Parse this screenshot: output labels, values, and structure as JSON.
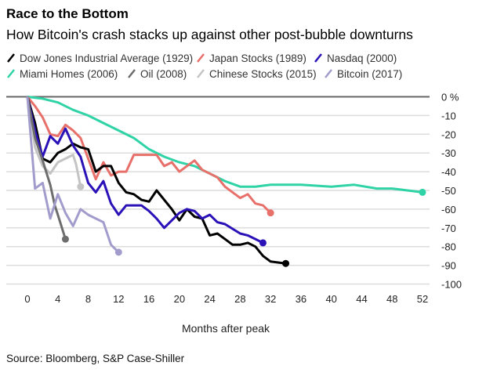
{
  "chart_data": {
    "type": "line",
    "title": "Race to the Bottom",
    "subtitle": "How Bitcoin's crash stacks up against other post-bubble downturns",
    "xlabel": "Months after peak",
    "ylabel": "",
    "source": "Source: Bloomberg, S&P Case-Shiller",
    "xlim": [
      0,
      52
    ],
    "ylim": [
      -100,
      0
    ],
    "x_ticks": [
      "0",
      "4",
      "8",
      "12",
      "16",
      "20",
      "24",
      "28",
      "32",
      "36",
      "40",
      "44",
      "48",
      "52"
    ],
    "y_ticks": [
      "0 %",
      "-10",
      "-20",
      "-30",
      "-40",
      "-50",
      "-60",
      "-70",
      "-80",
      "-90",
      "-100"
    ],
    "grid": true,
    "legend_position": "top",
    "series": [
      {
        "name": "Dow Jones Industrial Average (1929)",
        "color": "#000000",
        "points": [
          [
            0,
            0
          ],
          [
            1,
            -14
          ],
          [
            2,
            -33
          ],
          [
            3,
            -35
          ],
          [
            4,
            -30
          ],
          [
            5,
            -28
          ],
          [
            6,
            -25
          ],
          [
            7,
            -27
          ],
          [
            8,
            -28
          ],
          [
            9,
            -40
          ],
          [
            10,
            -37
          ],
          [
            11,
            -37
          ],
          [
            12,
            -46
          ],
          [
            13,
            -51
          ],
          [
            14,
            -52
          ],
          [
            15,
            -55
          ],
          [
            16,
            -56
          ],
          [
            17,
            -50
          ],
          [
            18,
            -55
          ],
          [
            19,
            -60
          ],
          [
            20,
            -66
          ],
          [
            21,
            -60
          ],
          [
            22,
            -64
          ],
          [
            23,
            -65
          ],
          [
            24,
            -74
          ],
          [
            25,
            -73
          ],
          [
            26,
            -76
          ],
          [
            27,
            -79
          ],
          [
            28,
            -79
          ],
          [
            29,
            -78
          ],
          [
            30,
            -80
          ],
          [
            31,
            -85
          ],
          [
            32,
            -88
          ],
          [
            34,
            -89
          ]
        ]
      },
      {
        "name": "Japan Stocks (1989)",
        "color": "#e8706a",
        "points": [
          [
            0,
            0
          ],
          [
            1,
            -5
          ],
          [
            2,
            -11
          ],
          [
            3,
            -20
          ],
          [
            4,
            -21
          ],
          [
            5,
            -15
          ],
          [
            6,
            -18
          ],
          [
            7,
            -22
          ],
          [
            8,
            -33
          ],
          [
            9,
            -44
          ],
          [
            10,
            -35
          ],
          [
            11,
            -42
          ],
          [
            12,
            -40
          ],
          [
            13,
            -40
          ],
          [
            14,
            -31
          ],
          [
            16,
            -31
          ],
          [
            17,
            -31
          ],
          [
            18,
            -37
          ],
          [
            19,
            -35
          ],
          [
            20,
            -40
          ],
          [
            22,
            -34
          ],
          [
            23,
            -39
          ],
          [
            25,
            -43
          ],
          [
            26,
            -48
          ],
          [
            27,
            -51
          ],
          [
            28,
            -54
          ],
          [
            29,
            -52
          ],
          [
            30,
            -57
          ],
          [
            31,
            -58
          ],
          [
            32,
            -62
          ]
        ]
      },
      {
        "name": "Nasdaq (2000)",
        "color": "#2a11b8",
        "points": [
          [
            0,
            0
          ],
          [
            1,
            -18
          ],
          [
            2,
            -32
          ],
          [
            3,
            -21
          ],
          [
            4,
            -25
          ],
          [
            5,
            -17
          ],
          [
            6,
            -26
          ],
          [
            7,
            -32
          ],
          [
            8,
            -46
          ],
          [
            9,
            -51
          ],
          [
            10,
            -45
          ],
          [
            11,
            -57
          ],
          [
            12,
            -63
          ],
          [
            13,
            -58
          ],
          [
            15,
            -58
          ],
          [
            16,
            -61
          ],
          [
            17,
            -65
          ],
          [
            18,
            -70
          ],
          [
            20,
            -62
          ],
          [
            21,
            -60
          ],
          [
            22,
            -61
          ],
          [
            23,
            -65
          ],
          [
            24,
            -63
          ],
          [
            25,
            -67
          ],
          [
            26,
            -68
          ],
          [
            28,
            -73
          ],
          [
            29,
            -74
          ],
          [
            30,
            -76
          ],
          [
            31,
            -78
          ]
        ]
      },
      {
        "name": "Miami Homes (2006)",
        "color": "#2fd3a6",
        "points": [
          [
            0,
            0
          ],
          [
            2,
            -1
          ],
          [
            4,
            -3
          ],
          [
            6,
            -7
          ],
          [
            8,
            -10
          ],
          [
            10,
            -14
          ],
          [
            12,
            -18
          ],
          [
            14,
            -22
          ],
          [
            16,
            -28
          ],
          [
            18,
            -32
          ],
          [
            20,
            -35
          ],
          [
            22,
            -37
          ],
          [
            24,
            -41
          ],
          [
            26,
            -45
          ],
          [
            28,
            -48
          ],
          [
            30,
            -48
          ],
          [
            32,
            -47
          ],
          [
            36,
            -47
          ],
          [
            40,
            -48
          ],
          [
            43,
            -47
          ],
          [
            46,
            -49
          ],
          [
            48,
            -49
          ],
          [
            52,
            -51
          ]
        ]
      },
      {
        "name": "Oil (2008)",
        "color": "#6d6d6d",
        "points": [
          [
            0,
            0
          ],
          [
            1,
            -22
          ],
          [
            2,
            -34
          ],
          [
            3,
            -47
          ],
          [
            3.6,
            -58
          ],
          [
            4,
            -63
          ],
          [
            5,
            -76
          ]
        ]
      },
      {
        "name": "Chinese Stocks (2015)",
        "color": "#c4c4c4",
        "points": [
          [
            0,
            0
          ],
          [
            1,
            -27
          ],
          [
            2,
            -37
          ],
          [
            3,
            -41
          ],
          [
            4,
            -35
          ],
          [
            5,
            -33
          ],
          [
            6,
            -31
          ],
          [
            6.4,
            -36
          ],
          [
            7,
            -48
          ]
        ]
      },
      {
        "name": "Bitcoin (2017)",
        "color": "#a29ccc",
        "points": [
          [
            0,
            0
          ],
          [
            1,
            -49
          ],
          [
            2,
            -46
          ],
          [
            3,
            -65
          ],
          [
            4,
            -52
          ],
          [
            5,
            -62
          ],
          [
            6,
            -69
          ],
          [
            7,
            -60
          ],
          [
            8,
            -63
          ],
          [
            10,
            -67
          ],
          [
            11,
            -79
          ],
          [
            12,
            -83
          ]
        ]
      }
    ]
  }
}
